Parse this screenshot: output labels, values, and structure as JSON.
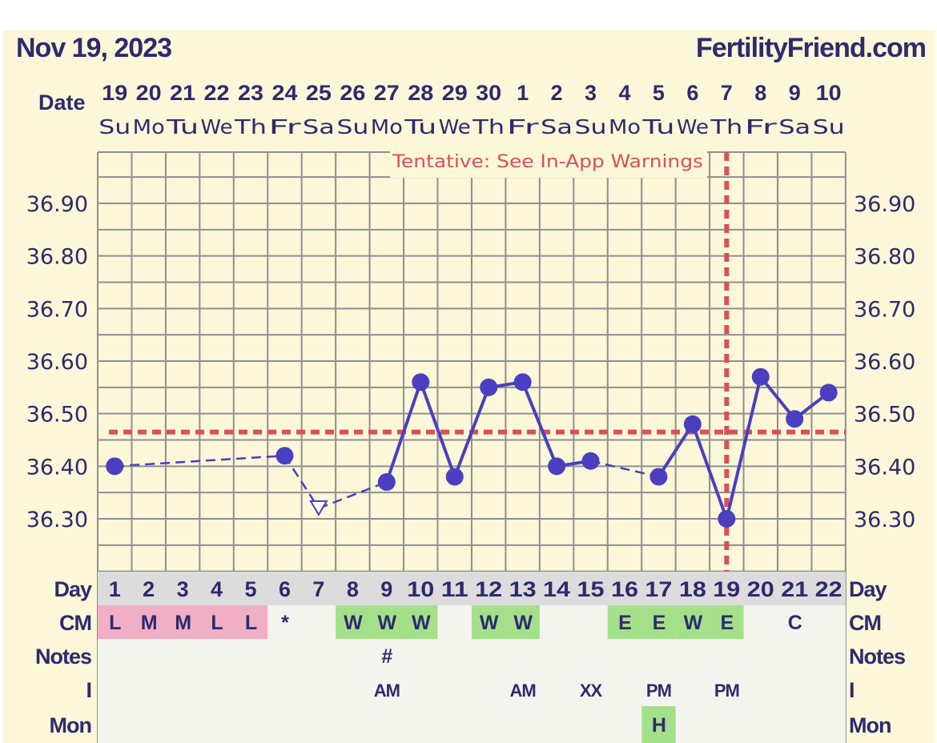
{
  "header": {
    "date": "Nov 19, 2023",
    "site": "FertilityFriend.com"
  },
  "colors": {
    "panel_bg": "#fbf7d8",
    "grid": "#8f8f8f",
    "text": "#2e2a6e",
    "line": "#4a3fc0",
    "coverline": "#d9505a",
    "cm_pink": "#f0afc4",
    "cm_green": "#a4e08a",
    "row_bg": "#f4f4ee",
    "day_bg": "#dcdcdc",
    "tentative_text": "#d9505a"
  },
  "chart_data": {
    "type": "line",
    "title": "",
    "annotation": "Tentative: See In-App Warnings",
    "row_labels": {
      "date": "Date",
      "day": "Day",
      "cm": "CM",
      "notes": "Notes",
      "i": "I",
      "mon": "Mon"
    },
    "dates": [
      "19",
      "20",
      "21",
      "22",
      "23",
      "24",
      "25",
      "26",
      "27",
      "28",
      "29",
      "30",
      "1",
      "2",
      "3",
      "4",
      "5",
      "6",
      "7",
      "8",
      "9",
      "10"
    ],
    "weekdays": [
      "Su",
      "Mo",
      "Tu",
      "We",
      "Th",
      "Fr",
      "Sa",
      "Su",
      "Mo",
      "Tu",
      "We",
      "Th",
      "Fr",
      "Sa",
      "Su",
      "Mo",
      "Tu",
      "We",
      "Th",
      "Fr",
      "Sa",
      "Su"
    ],
    "days": [
      1,
      2,
      3,
      4,
      5,
      6,
      7,
      8,
      9,
      10,
      11,
      12,
      13,
      14,
      15,
      16,
      17,
      18,
      19,
      20,
      21,
      22
    ],
    "y_ticks": [
      "36.90",
      "36.80",
      "36.70",
      "36.60",
      "36.50",
      "36.40",
      "36.30"
    ],
    "ylim": [
      36.22,
      36.98
    ],
    "temperatures": [
      36.4,
      null,
      null,
      null,
      null,
      36.42,
      36.32,
      null,
      36.37,
      36.56,
      36.38,
      36.55,
      36.56,
      36.4,
      36.41,
      null,
      36.38,
      36.48,
      36.3,
      36.57,
      36.49,
      36.54
    ],
    "discarded_day": 7,
    "coverline": 36.465,
    "ovulation_day": 19,
    "cm": [
      "L",
      "M",
      "M",
      "L",
      "L",
      "*",
      "",
      "W",
      "W",
      "W",
      "",
      "W",
      "W",
      "",
      "",
      "E",
      "E",
      "W",
      "E",
      "",
      "C",
      ""
    ],
    "cm_colors": [
      "pink",
      "pink",
      "pink",
      "pink",
      "pink",
      "",
      "",
      "green",
      "green",
      "green",
      "",
      "green",
      "green",
      "",
      "",
      "green",
      "green",
      "green",
      "green",
      "",
      "",
      ""
    ],
    "notes": [
      "",
      "",
      "",
      "",
      "",
      "",
      "",
      "",
      "#",
      "",
      "",
      "",
      "",
      "",
      "",
      "",
      "",
      "",
      "",
      "",
      "",
      ""
    ],
    "intercourse": [
      "",
      "",
      "",
      "",
      "",
      "",
      "",
      "",
      "AM",
      "",
      "",
      "",
      "AM",
      "",
      "XX",
      "",
      "PM",
      "",
      "PM",
      "",
      "",
      ""
    ],
    "monitor": [
      "",
      "",
      "",
      "",
      "",
      "",
      "",
      "",
      "",
      "",
      "",
      "",
      "",
      "",
      "",
      "",
      "H",
      "",
      "",
      "",
      "",
      ""
    ],
    "monitor_colors": [
      "",
      "",
      "",
      "",
      "",
      "",
      "",
      "",
      "",
      "",
      "",
      "",
      "",
      "",
      "",
      "",
      "green",
      "",
      "",
      "",
      "",
      ""
    ]
  }
}
